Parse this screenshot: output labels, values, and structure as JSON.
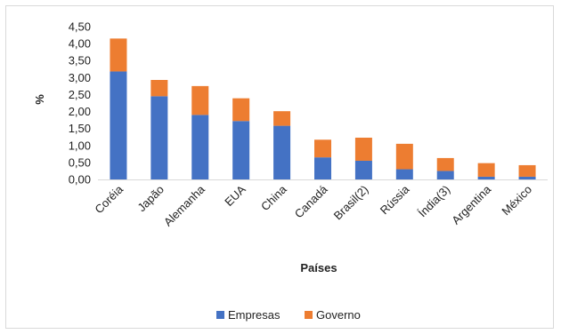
{
  "chart_data": {
    "type": "bar",
    "stacked": true,
    "xlabel": "Países",
    "ylabel": "%",
    "ylim": [
      0,
      4.5
    ],
    "ytick_step": 0.5,
    "yticks": [
      "0,00",
      "0,50",
      "1,00",
      "1,50",
      "2,00",
      "2,50",
      "3,00",
      "3,50",
      "4,00",
      "4,50"
    ],
    "grid": false,
    "legend_position": "bottom",
    "categories": [
      "Coréia",
      "Japão",
      "Alemanha",
      "EUA",
      "China",
      "Canadá",
      "Brasil(2)",
      "Rússia",
      "Índia(3)",
      "Argentina",
      "México"
    ],
    "series": [
      {
        "name": "Empresas",
        "color": "#4472c4",
        "values": [
          3.18,
          2.45,
          1.9,
          1.72,
          1.58,
          0.65,
          0.55,
          0.3,
          0.25,
          0.08,
          0.08
        ]
      },
      {
        "name": "Governo",
        "color": "#ed7d31",
        "values": [
          0.97,
          0.48,
          0.85,
          0.67,
          0.43,
          0.52,
          0.68,
          0.75,
          0.38,
          0.4,
          0.34
        ]
      }
    ]
  }
}
